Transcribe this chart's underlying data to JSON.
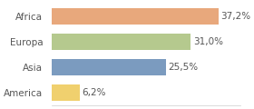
{
  "categories": [
    "America",
    "Asia",
    "Europa",
    "Africa"
  ],
  "values": [
    6.2,
    25.5,
    31.0,
    37.2
  ],
  "labels": [
    "6,2%",
    "25,5%",
    "31,0%",
    "37,2%"
  ],
  "bar_colors": [
    "#f0d06e",
    "#7b9bbf",
    "#b5c98e",
    "#e8a87c"
  ],
  "background_color": "#ffffff",
  "xlim": [
    0,
    42
  ],
  "bar_height": 0.65,
  "label_fontsize": 7.5,
  "tick_fontsize": 7.5
}
